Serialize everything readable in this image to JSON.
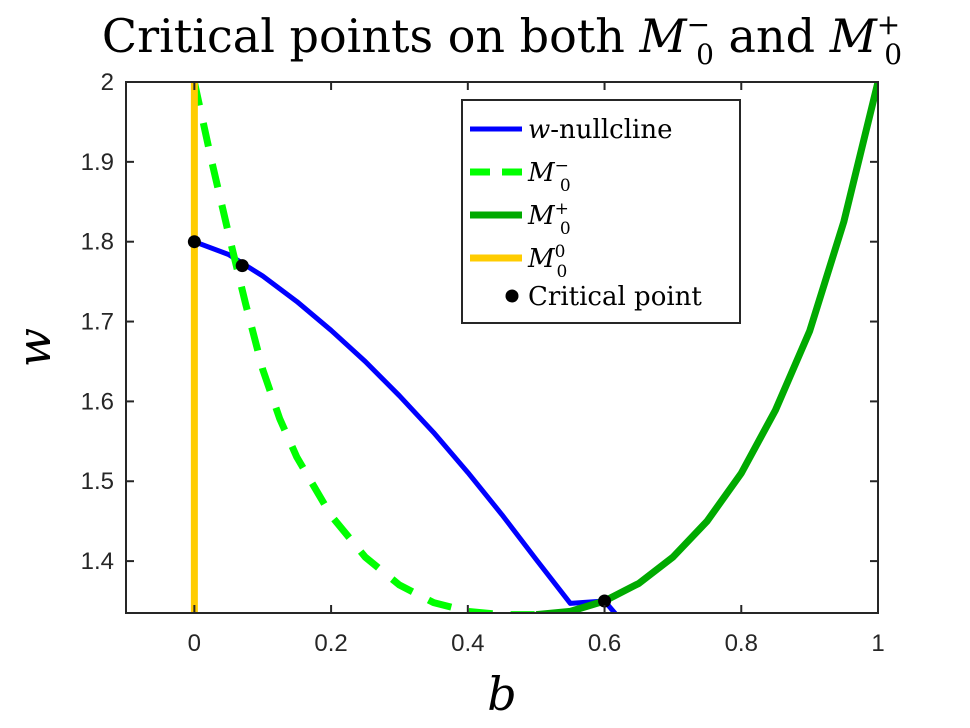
{
  "chart_data": {
    "type": "line",
    "title": "Critical points on both",
    "title_sym1": "M",
    "title_sym1_sub": "0",
    "title_sym1_sup": "−",
    "title_conj": "and",
    "title_sym2": "M",
    "title_sym2_sub": "0",
    "title_sym2_sup": "+",
    "xlabel": "b",
    "ylabel": "w",
    "xlim": [
      -0.1,
      1.0
    ],
    "ylim": [
      1.335,
      2.0
    ],
    "xticks": [
      0,
      0.2,
      0.4,
      0.6,
      0.8,
      1
    ],
    "xtick_labels": [
      "0",
      "0.2",
      "0.4",
      "0.6",
      "0.8",
      "1"
    ],
    "yticks": [
      1.4,
      1.5,
      1.6,
      1.7,
      1.8,
      1.9,
      2.0
    ],
    "ytick_labels": [
      "1.4",
      "1.5",
      "1.6",
      "1.7",
      "1.8",
      "1.9",
      "2"
    ],
    "grid": false,
    "legend_position": "top-right",
    "series": [
      {
        "name": "w-nullcline",
        "label_main": "w",
        "label_rest": "-nullcline",
        "color": "#0000ff",
        "style": "solid",
        "x": [
          0,
          0.05,
          0.1,
          0.15,
          0.2,
          0.25,
          0.3,
          0.35,
          0.4,
          0.45,
          0.5,
          0.55,
          0.6,
          0.62
        ],
        "y": [
          1.8,
          1.784,
          1.757,
          1.725,
          1.689,
          1.65,
          1.607,
          1.561,
          1.511,
          1.458,
          1.402,
          1.347,
          1.35,
          1.33
        ]
      },
      {
        "name": "M0-",
        "label_sym": "M",
        "label_sub": "0",
        "label_sup": "−",
        "color": "#00ff00",
        "style": "dashed",
        "x": [
          0.0,
          0.025,
          0.05,
          0.075,
          0.1,
          0.125,
          0.15,
          0.2,
          0.25,
          0.3,
          0.35,
          0.4,
          0.45,
          0.5
        ],
        "y": [
          2.0,
          1.902,
          1.81,
          1.722,
          1.64,
          1.578,
          1.53,
          1.457,
          1.405,
          1.37,
          1.348,
          1.337,
          1.333,
          1.333
        ]
      },
      {
        "name": "M0+",
        "label_sym": "M",
        "label_sub": "0",
        "label_sup": "+",
        "color": "#00aa00",
        "style": "solid",
        "x": [
          0.5,
          0.55,
          0.6,
          0.65,
          0.7,
          0.75,
          0.8,
          0.85,
          0.9,
          0.95,
          1.0
        ],
        "y": [
          1.333,
          1.337,
          1.35,
          1.372,
          1.405,
          1.45,
          1.51,
          1.589,
          1.688,
          1.825,
          2.0
        ]
      },
      {
        "name": "M00",
        "label_sym": "M",
        "label_sub": "0",
        "label_sup": "0",
        "color": "#ffcc00",
        "style": "solid",
        "x": [
          0,
          0
        ],
        "y": [
          1.335,
          2.0
        ]
      }
    ],
    "critical_points": {
      "name": "Critical point",
      "color": "#000000",
      "x": [
        0,
        0.07,
        0.6
      ],
      "y": [
        1.8,
        1.77,
        1.35
      ]
    }
  }
}
